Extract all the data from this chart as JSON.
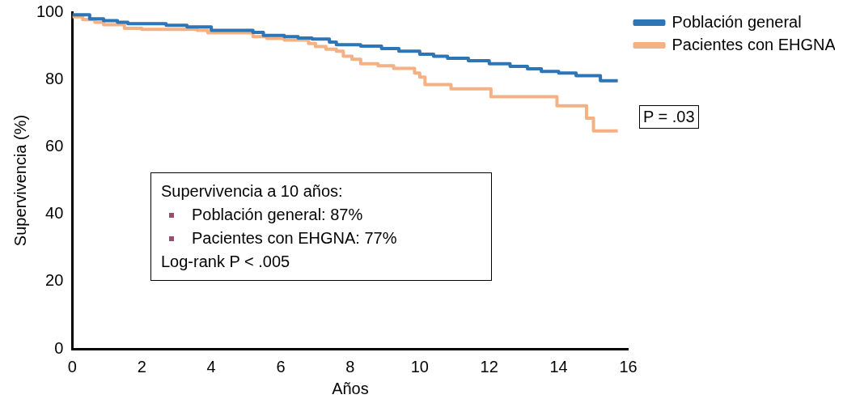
{
  "chart_data": {
    "type": "step",
    "xlabel": "Años",
    "ylabel": "Supervivencia (%)",
    "xlim": [
      0,
      16
    ],
    "xticks": [
      0,
      2,
      4,
      6,
      8,
      10,
      12,
      14,
      16
    ],
    "ylim": [
      0,
      100
    ],
    "yticks": [
      0,
      20,
      40,
      60,
      80,
      100
    ],
    "grid": false,
    "legend": "top right",
    "marker": "none",
    "line_style": "solid",
    "series": [
      {
        "name": "Población general",
        "color": "#2e75b6",
        "x": [
          0,
          0.5,
          0.9,
          1.3,
          1.6,
          2.7,
          3.3,
          4.0,
          5.2,
          5.5,
          6.1,
          6.5,
          6.9,
          7.4,
          7.6,
          8.3,
          8.9,
          9.4,
          10.0,
          10.4,
          10.8,
          11.4,
          12.0,
          12.6,
          13.1,
          13.5,
          14.0,
          14.5,
          15.2,
          15.7
        ],
        "values": [
          99.2,
          98,
          97.5,
          97,
          96.6,
          96.1,
          95.6,
          94.6,
          94,
          93.1,
          92.7,
          92.3,
          92,
          91.1,
          90.3,
          89.9,
          89.2,
          88.4,
          87.5,
          86.9,
          86.3,
          85.6,
          84.7,
          83.9,
          83.2,
          82.4,
          81.9,
          81.1,
          79.6,
          79.6
        ]
      },
      {
        "name": "Pacientes con EHGNA",
        "color": "#f4b183",
        "x": [
          0,
          0.3,
          0.65,
          0.9,
          1.5,
          2.0,
          3.6,
          3.9,
          5.2,
          5.6,
          6.1,
          6.8,
          7.0,
          7.3,
          7.6,
          7.8,
          8.05,
          8.3,
          8.8,
          9.25,
          9.85,
          10.0,
          10.15,
          10.9,
          12.05,
          13.95,
          14.8,
          15.0,
          15.7
        ],
        "values": [
          98.6,
          97.8,
          97,
          96.3,
          95.2,
          94.9,
          94.6,
          93.9,
          92.7,
          92.2,
          91.7,
          90.7,
          89.8,
          89,
          88.4,
          86.9,
          86,
          84.7,
          84.1,
          83.3,
          81.9,
          80.7,
          78.5,
          77.2,
          74.9,
          72.2,
          68.5,
          64.7,
          64.7
        ]
      }
    ],
    "annotations": [
      "Supervivencia a 10 años:",
      "Población general: 87%",
      "Pacientes con EHGNA: 77%",
      "Log-rank P < .005",
      "P = .03"
    ]
  }
}
